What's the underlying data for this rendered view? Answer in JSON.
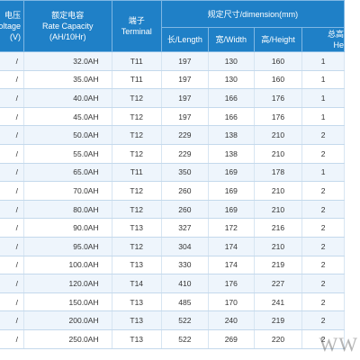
{
  "header": {
    "voltage_cn": "电压",
    "voltage_en": "oltage",
    "voltage_unit": "(V)",
    "capacity_cn": "额定电容",
    "capacity_en": "Rate Capacity",
    "capacity_unit": "(AH/10Hr)",
    "terminal_cn": "端子",
    "terminal_en": "Terminal",
    "dimension_group": "规定尺寸/dimension(mm)",
    "length": "长/Length",
    "width": "宽/Width",
    "height": "高/Height",
    "total_height_cn": "总高",
    "total_height_en": "He"
  },
  "rows": [
    {
      "voltage": "/",
      "capacity": "32.0AH",
      "terminal": "T11",
      "length": "197",
      "width": "130",
      "height": "160",
      "total_height": "1"
    },
    {
      "voltage": "/",
      "capacity": "35.0AH",
      "terminal": "T11",
      "length": "197",
      "width": "130",
      "height": "160",
      "total_height": "1"
    },
    {
      "voltage": "/",
      "capacity": "40.0AH",
      "terminal": "T12",
      "length": "197",
      "width": "166",
      "height": "176",
      "total_height": "1"
    },
    {
      "voltage": "/",
      "capacity": "45.0AH",
      "terminal": "T12",
      "length": "197",
      "width": "166",
      "height": "176",
      "total_height": "1"
    },
    {
      "voltage": "/",
      "capacity": "50.0AH",
      "terminal": "T12",
      "length": "229",
      "width": "138",
      "height": "210",
      "total_height": "2"
    },
    {
      "voltage": "/",
      "capacity": "55.0AH",
      "terminal": "T12",
      "length": "229",
      "width": "138",
      "height": "210",
      "total_height": "2"
    },
    {
      "voltage": "/",
      "capacity": "65.0AH",
      "terminal": "T11",
      "length": "350",
      "width": "169",
      "height": "178",
      "total_height": "1"
    },
    {
      "voltage": "/",
      "capacity": "70.0AH",
      "terminal": "T12",
      "length": "260",
      "width": "169",
      "height": "210",
      "total_height": "2"
    },
    {
      "voltage": "/",
      "capacity": "80.0AH",
      "terminal": "T12",
      "length": "260",
      "width": "169",
      "height": "210",
      "total_height": "2"
    },
    {
      "voltage": "/",
      "capacity": "90.0AH",
      "terminal": "T13",
      "length": "327",
      "width": "172",
      "height": "216",
      "total_height": "2"
    },
    {
      "voltage": "/",
      "capacity": "95.0AH",
      "terminal": "T12",
      "length": "304",
      "width": "174",
      "height": "210",
      "total_height": "2"
    },
    {
      "voltage": "/",
      "capacity": "100.0AH",
      "terminal": "T13",
      "length": "330",
      "width": "174",
      "height": "219",
      "total_height": "2"
    },
    {
      "voltage": "/",
      "capacity": "120.0AH",
      "terminal": "T14",
      "length": "410",
      "width": "176",
      "height": "227",
      "total_height": "2"
    },
    {
      "voltage": "/",
      "capacity": "150.0AH",
      "terminal": "T13",
      "length": "485",
      "width": "170",
      "height": "241",
      "total_height": "2"
    },
    {
      "voltage": "/",
      "capacity": "200.0AH",
      "terminal": "T13",
      "length": "522",
      "width": "240",
      "height": "219",
      "total_height": "2"
    },
    {
      "voltage": "/",
      "capacity": "250.0AH",
      "terminal": "T13",
      "length": "522",
      "width": "269",
      "height": "220",
      "total_height": "2"
    }
  ],
  "watermark": "WW"
}
